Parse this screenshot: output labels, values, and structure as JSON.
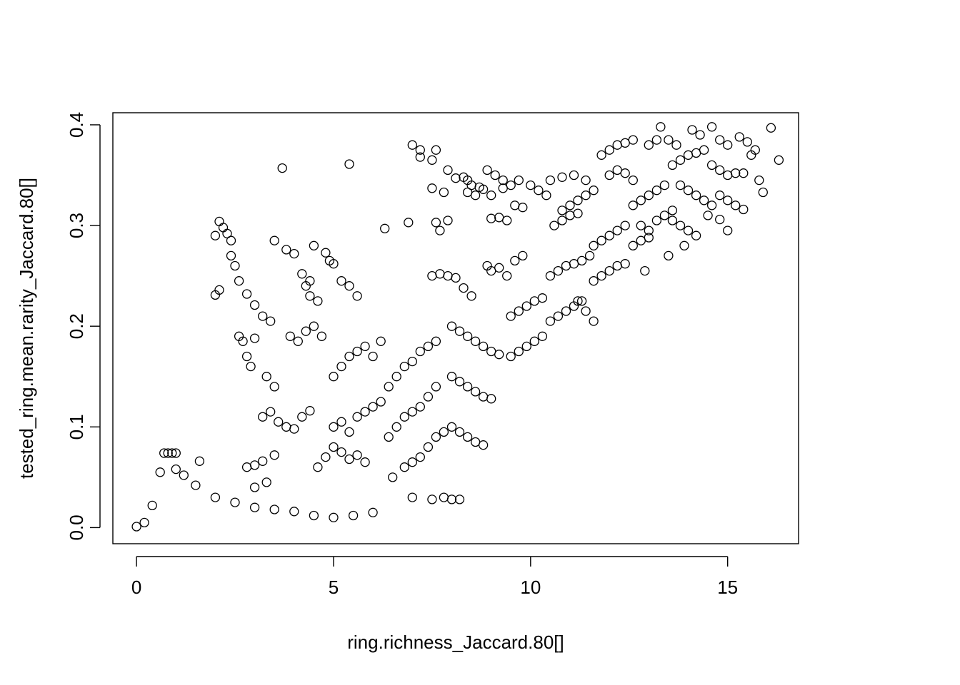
{
  "chart_data": {
    "type": "scatter",
    "title": "",
    "xlabel": "ring.richness_Jaccard.80[]",
    "ylabel": "tested_ring.mean.rarity_Jaccard.80[]",
    "xlim": [
      -0.6,
      16.8
    ],
    "ylim": [
      -0.016,
      0.412
    ],
    "x_ticks": [
      0,
      5,
      10,
      15
    ],
    "x_tick_labels": [
      "0",
      "5",
      "10",
      "15"
    ],
    "y_ticks": [
      0.0,
      0.1,
      0.2,
      0.3,
      0.4
    ],
    "y_tick_labels": [
      "0.0",
      "0.1",
      "0.2",
      "0.3",
      "0.4"
    ],
    "grid": false,
    "marker": "open-circle",
    "marker_color": "#000000",
    "series": [
      {
        "points": [
          [
            0.0,
            0.001
          ],
          [
            0.2,
            0.005
          ],
          [
            0.4,
            0.022
          ],
          [
            0.6,
            0.055
          ],
          [
            0.7,
            0.074
          ],
          [
            0.8,
            0.074
          ],
          [
            0.9,
            0.074
          ],
          [
            1.0,
            0.074
          ],
          [
            1.6,
            0.066
          ],
          [
            1.0,
            0.058
          ],
          [
            1.2,
            0.052
          ],
          [
            1.5,
            0.042
          ],
          [
            2.0,
            0.03
          ],
          [
            2.5,
            0.025
          ],
          [
            3.0,
            0.02
          ],
          [
            3.5,
            0.018
          ],
          [
            4.0,
            0.016
          ],
          [
            4.5,
            0.012
          ],
          [
            5.0,
            0.01
          ],
          [
            5.5,
            0.012
          ],
          [
            6.0,
            0.015
          ],
          [
            2.0,
            0.29
          ],
          [
            2.1,
            0.304
          ],
          [
            2.2,
            0.298
          ],
          [
            2.3,
            0.292
          ],
          [
            2.4,
            0.285
          ],
          [
            2.0,
            0.231
          ],
          [
            2.1,
            0.236
          ],
          [
            2.4,
            0.27
          ],
          [
            2.5,
            0.26
          ],
          [
            2.6,
            0.245
          ],
          [
            2.8,
            0.232
          ],
          [
            3.0,
            0.221
          ],
          [
            3.2,
            0.21
          ],
          [
            3.4,
            0.205
          ],
          [
            2.6,
            0.19
          ],
          [
            2.7,
            0.185
          ],
          [
            2.8,
            0.17
          ],
          [
            2.9,
            0.16
          ],
          [
            3.0,
            0.188
          ],
          [
            3.7,
            0.357
          ],
          [
            5.4,
            0.361
          ],
          [
            3.5,
            0.285
          ],
          [
            3.8,
            0.276
          ],
          [
            4.0,
            0.272
          ],
          [
            4.4,
            0.245
          ],
          [
            4.5,
            0.28
          ],
          [
            4.8,
            0.273
          ],
          [
            4.9,
            0.265
          ],
          [
            5.0,
            0.262
          ],
          [
            4.2,
            0.252
          ],
          [
            4.3,
            0.24
          ],
          [
            4.4,
            0.23
          ],
          [
            4.6,
            0.225
          ],
          [
            5.2,
            0.245
          ],
          [
            5.4,
            0.24
          ],
          [
            5.6,
            0.23
          ],
          [
            3.9,
            0.19
          ],
          [
            4.1,
            0.185
          ],
          [
            4.3,
            0.195
          ],
          [
            4.5,
            0.2
          ],
          [
            4.7,
            0.19
          ],
          [
            3.3,
            0.15
          ],
          [
            3.5,
            0.14
          ],
          [
            3.2,
            0.11
          ],
          [
            3.4,
            0.115
          ],
          [
            3.6,
            0.105
          ],
          [
            3.8,
            0.1
          ],
          [
            4.0,
            0.098
          ],
          [
            4.2,
            0.11
          ],
          [
            4.4,
            0.116
          ],
          [
            2.8,
            0.06
          ],
          [
            3.0,
            0.062
          ],
          [
            3.2,
            0.066
          ],
          [
            3.5,
            0.072
          ],
          [
            3.0,
            0.04
          ],
          [
            3.3,
            0.045
          ],
          [
            5.0,
            0.15
          ],
          [
            5.2,
            0.16
          ],
          [
            5.4,
            0.17
          ],
          [
            5.6,
            0.175
          ],
          [
            5.8,
            0.18
          ],
          [
            6.0,
            0.17
          ],
          [
            6.2,
            0.185
          ],
          [
            5.0,
            0.1
          ],
          [
            5.2,
            0.105
          ],
          [
            5.4,
            0.095
          ],
          [
            5.6,
            0.11
          ],
          [
            5.8,
            0.115
          ],
          [
            6.0,
            0.12
          ],
          [
            6.2,
            0.125
          ],
          [
            4.6,
            0.06
          ],
          [
            4.8,
            0.07
          ],
          [
            5.0,
            0.08
          ],
          [
            5.2,
            0.075
          ],
          [
            5.4,
            0.068
          ],
          [
            5.6,
            0.072
          ],
          [
            5.8,
            0.065
          ],
          [
            6.4,
            0.14
          ],
          [
            6.6,
            0.15
          ],
          [
            6.8,
            0.16
          ],
          [
            7.0,
            0.165
          ],
          [
            7.2,
            0.175
          ],
          [
            7.4,
            0.18
          ],
          [
            7.6,
            0.185
          ],
          [
            6.4,
            0.09
          ],
          [
            6.6,
            0.1
          ],
          [
            6.8,
            0.11
          ],
          [
            7.0,
            0.115
          ],
          [
            7.2,
            0.12
          ],
          [
            7.4,
            0.13
          ],
          [
            7.6,
            0.14
          ],
          [
            6.5,
            0.05
          ],
          [
            6.8,
            0.06
          ],
          [
            7.0,
            0.065
          ],
          [
            7.2,
            0.07
          ],
          [
            7.4,
            0.08
          ],
          [
            7.6,
            0.09
          ],
          [
            7.8,
            0.095
          ],
          [
            7.0,
            0.03
          ],
          [
            7.5,
            0.028
          ],
          [
            8.0,
            0.028
          ],
          [
            8.2,
            0.028
          ],
          [
            7.8,
            0.03
          ],
          [
            7.0,
            0.38
          ],
          [
            7.2,
            0.375
          ],
          [
            7.6,
            0.375
          ],
          [
            7.2,
            0.368
          ],
          [
            7.5,
            0.365
          ],
          [
            7.9,
            0.355
          ],
          [
            7.5,
            0.337
          ],
          [
            7.8,
            0.333
          ],
          [
            6.3,
            0.297
          ],
          [
            6.9,
            0.303
          ],
          [
            7.6,
            0.303
          ],
          [
            7.7,
            0.295
          ],
          [
            7.9,
            0.305
          ],
          [
            8.1,
            0.347
          ],
          [
            8.3,
            0.348
          ],
          [
            8.4,
            0.345
          ],
          [
            8.5,
            0.34
          ],
          [
            8.7,
            0.338
          ],
          [
            8.9,
            0.355
          ],
          [
            9.1,
            0.35
          ],
          [
            9.3,
            0.345
          ],
          [
            8.4,
            0.333
          ],
          [
            8.6,
            0.33
          ],
          [
            8.8,
            0.336
          ],
          [
            9.0,
            0.33
          ],
          [
            7.5,
            0.25
          ],
          [
            7.7,
            0.252
          ],
          [
            7.9,
            0.25
          ],
          [
            8.1,
            0.248
          ],
          [
            8.3,
            0.238
          ],
          [
            8.5,
            0.23
          ],
          [
            8.0,
            0.2
          ],
          [
            8.2,
            0.195
          ],
          [
            8.4,
            0.19
          ],
          [
            8.6,
            0.185
          ],
          [
            8.8,
            0.18
          ],
          [
            9.0,
            0.175
          ],
          [
            9.2,
            0.172
          ],
          [
            8.0,
            0.15
          ],
          [
            8.2,
            0.145
          ],
          [
            8.4,
            0.14
          ],
          [
            8.6,
            0.135
          ],
          [
            8.8,
            0.13
          ],
          [
            9.0,
            0.128
          ],
          [
            8.0,
            0.1
          ],
          [
            8.2,
            0.095
          ],
          [
            8.4,
            0.09
          ],
          [
            8.6,
            0.085
          ],
          [
            8.8,
            0.082
          ],
          [
            8.9,
            0.26
          ],
          [
            9.0,
            0.255
          ],
          [
            9.2,
            0.258
          ],
          [
            9.4,
            0.25
          ],
          [
            9.6,
            0.265
          ],
          [
            9.8,
            0.27
          ],
          [
            9.0,
            0.307
          ],
          [
            9.2,
            0.308
          ],
          [
            9.4,
            0.305
          ],
          [
            9.6,
            0.32
          ],
          [
            9.8,
            0.318
          ],
          [
            9.3,
            0.337
          ],
          [
            9.5,
            0.34
          ],
          [
            9.7,
            0.345
          ],
          [
            10.0,
            0.34
          ],
          [
            10.2,
            0.335
          ],
          [
            10.4,
            0.33
          ],
          [
            9.5,
            0.21
          ],
          [
            9.7,
            0.215
          ],
          [
            9.9,
            0.22
          ],
          [
            10.1,
            0.225
          ],
          [
            10.3,
            0.228
          ],
          [
            9.5,
            0.17
          ],
          [
            9.7,
            0.175
          ],
          [
            9.9,
            0.18
          ],
          [
            10.1,
            0.185
          ],
          [
            10.3,
            0.19
          ],
          [
            10.5,
            0.25
          ],
          [
            10.7,
            0.255
          ],
          [
            10.9,
            0.26
          ],
          [
            11.1,
            0.262
          ],
          [
            11.3,
            0.265
          ],
          [
            11.5,
            0.27
          ],
          [
            10.5,
            0.205
          ],
          [
            10.7,
            0.21
          ],
          [
            10.9,
            0.215
          ],
          [
            11.1,
            0.22
          ],
          [
            11.3,
            0.225
          ],
          [
            10.8,
            0.315
          ],
          [
            11.0,
            0.32
          ],
          [
            11.2,
            0.325
          ],
          [
            11.4,
            0.33
          ],
          [
            11.6,
            0.335
          ],
          [
            10.6,
            0.3
          ],
          [
            10.8,
            0.305
          ],
          [
            11.0,
            0.31
          ],
          [
            11.2,
            0.312
          ],
          [
            10.5,
            0.345
          ],
          [
            10.8,
            0.348
          ],
          [
            11.1,
            0.35
          ],
          [
            11.4,
            0.345
          ],
          [
            11.6,
            0.28
          ],
          [
            11.8,
            0.285
          ],
          [
            12.0,
            0.29
          ],
          [
            12.2,
            0.295
          ],
          [
            12.4,
            0.3
          ],
          [
            11.6,
            0.245
          ],
          [
            11.8,
            0.25
          ],
          [
            12.0,
            0.255
          ],
          [
            12.2,
            0.26
          ],
          [
            12.4,
            0.262
          ],
          [
            11.6,
            0.205
          ],
          [
            11.4,
            0.215
          ],
          [
            11.2,
            0.225
          ],
          [
            11.8,
            0.37
          ],
          [
            12.0,
            0.375
          ],
          [
            12.2,
            0.38
          ],
          [
            12.4,
            0.382
          ],
          [
            12.6,
            0.385
          ],
          [
            12.0,
            0.35
          ],
          [
            12.2,
            0.355
          ],
          [
            12.4,
            0.352
          ],
          [
            12.6,
            0.345
          ],
          [
            12.6,
            0.32
          ],
          [
            12.8,
            0.325
          ],
          [
            13.0,
            0.33
          ],
          [
            13.2,
            0.335
          ],
          [
            13.4,
            0.34
          ],
          [
            12.8,
            0.3
          ],
          [
            13.0,
            0.295
          ],
          [
            13.2,
            0.305
          ],
          [
            13.4,
            0.31
          ],
          [
            13.6,
            0.315
          ],
          [
            12.6,
            0.28
          ],
          [
            12.8,
            0.285
          ],
          [
            13.0,
            0.288
          ],
          [
            12.9,
            0.255
          ],
          [
            13.0,
            0.38
          ],
          [
            13.2,
            0.385
          ],
          [
            13.3,
            0.398
          ],
          [
            13.5,
            0.385
          ],
          [
            13.7,
            0.38
          ],
          [
            13.6,
            0.36
          ],
          [
            13.8,
            0.365
          ],
          [
            14.0,
            0.37
          ],
          [
            14.2,
            0.372
          ],
          [
            14.4,
            0.375
          ],
          [
            13.8,
            0.34
          ],
          [
            14.0,
            0.335
          ],
          [
            14.2,
            0.33
          ],
          [
            14.4,
            0.325
          ],
          [
            14.6,
            0.32
          ],
          [
            13.6,
            0.305
          ],
          [
            13.8,
            0.3
          ],
          [
            14.0,
            0.295
          ],
          [
            14.2,
            0.29
          ],
          [
            13.9,
            0.28
          ],
          [
            13.5,
            0.27
          ],
          [
            14.1,
            0.395
          ],
          [
            14.3,
            0.39
          ],
          [
            14.6,
            0.398
          ],
          [
            14.8,
            0.385
          ],
          [
            15.0,
            0.38
          ],
          [
            14.6,
            0.36
          ],
          [
            14.8,
            0.355
          ],
          [
            15.0,
            0.35
          ],
          [
            15.2,
            0.352
          ],
          [
            15.4,
            0.352
          ],
          [
            14.8,
            0.33
          ],
          [
            15.0,
            0.325
          ],
          [
            15.2,
            0.32
          ],
          [
            15.4,
            0.316
          ],
          [
            14.5,
            0.31
          ],
          [
            14.8,
            0.306
          ],
          [
            15.0,
            0.295
          ],
          [
            15.3,
            0.388
          ],
          [
            15.5,
            0.383
          ],
          [
            15.7,
            0.375
          ],
          [
            15.6,
            0.37
          ],
          [
            15.8,
            0.345
          ],
          [
            15.9,
            0.333
          ],
          [
            16.1,
            0.397
          ],
          [
            16.3,
            0.365
          ]
        ]
      }
    ]
  }
}
